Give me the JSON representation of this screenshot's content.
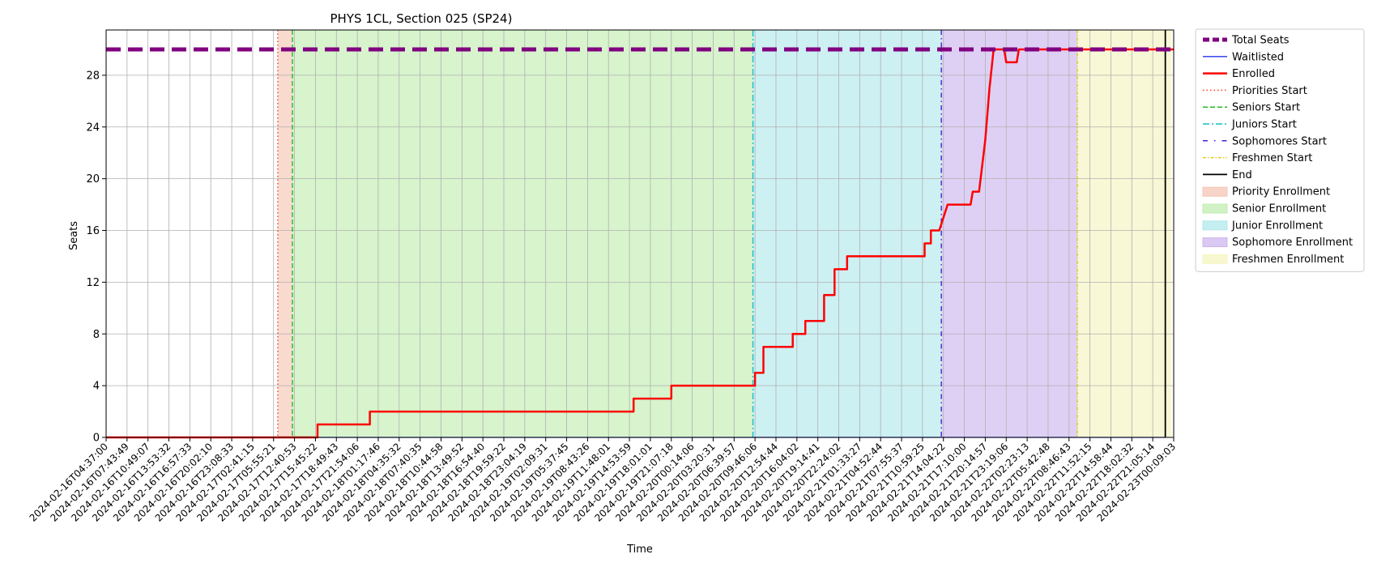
{
  "chart_data": {
    "type": "line",
    "title": "PHYS 1CL, Section 025 (SP24)",
    "xlabel": "Time",
    "ylabel": "Seats",
    "ylim": [
      0,
      31.5
    ],
    "yticks": [
      0,
      4,
      8,
      12,
      16,
      20,
      24,
      28
    ],
    "grid": true,
    "legend_position": "outside-right",
    "x_ticks": [
      "2024-02-16T04:37:00",
      "2024-02-16T07:43:49",
      "2024-02-16T10:49:07",
      "2024-02-16T13:53:32",
      "2024-02-16T16:57:33",
      "2024-02-16T20:02:10",
      "2024-02-16T23:08:33",
      "2024-02-17T02:41:15",
      "2024-02-17T05:55:21",
      "2024-02-17T12:40:53",
      "2024-02-17T15:45:22",
      "2024-02-17T18:49:43",
      "2024-02-17T21:54:06",
      "2024-02-18T01:17:46",
      "2024-02-18T04:35:32",
      "2024-02-18T07:40:35",
      "2024-02-18T10:44:58",
      "2024-02-18T13:49:52",
      "2024-02-18T16:54:40",
      "2024-02-18T19:59:22",
      "2024-02-18T23:04:19",
      "2024-02-19T02:09:31",
      "2024-02-19T05:37:45",
      "2024-02-19T08:43:26",
      "2024-02-19T11:48:01",
      "2024-02-19T14:53:59",
      "2024-02-19T18:01:01",
      "2024-02-19T21:07:18",
      "2024-02-20T00:14:06",
      "2024-02-20T03:20:31",
      "2024-02-20T06:39:57",
      "2024-02-20T09:46:06",
      "2024-02-20T12:54:44",
      "2024-02-20T16:04:02",
      "2024-02-20T19:14:41",
      "2024-02-20T22:24:02",
      "2024-02-21T01:33:27",
      "2024-02-21T04:52:44",
      "2024-02-21T07:55:37",
      "2024-02-21T10:59:25",
      "2024-02-21T14:04:22",
      "2024-02-21T17:10:00",
      "2024-02-21T20:14:57",
      "2024-02-21T23:19:06",
      "2024-02-22T02:23:13",
      "2024-02-22T05:42:48",
      "2024-02-22T08:46:43",
      "2024-02-22T11:52:15",
      "2024-02-22T14:58:44",
      "2024-02-22T18:02:32",
      "2024-02-22T21:05:14",
      "2024-02-23T00:09:03"
    ],
    "phases": [
      {
        "name": "Priority Enrollment",
        "start_index": 8.2,
        "end_index": 8.9,
        "color": "#f5c6b5"
      },
      {
        "name": "Senior Enrollment",
        "start_index": 8.9,
        "end_index": 30.9,
        "color": "#c2eeb2"
      },
      {
        "name": "Junior Enrollment",
        "start_index": 30.9,
        "end_index": 39.9,
        "color": "#b2e8ec"
      },
      {
        "name": "Sophomore Enrollment",
        "start_index": 39.9,
        "end_index": 46.4,
        "color": "#cdb7ee"
      },
      {
        "name": "Freshmen Enrollment",
        "start_index": 46.4,
        "end_index": 50.9,
        "color": "#f5f5c0"
      }
    ],
    "markers": [
      {
        "name": "Priorities Start",
        "index": 8.2,
        "color": "#ff3b1f",
        "dash": "1.5,3"
      },
      {
        "name": "Seniors Start",
        "index": 8.9,
        "color": "#22bb22",
        "dash": "6,3"
      },
      {
        "name": "Juniors Start",
        "index": 30.9,
        "color": "#13bdc6",
        "dash": "8,3,2,3"
      },
      {
        "name": "Sophomores Start",
        "index": 39.9,
        "color": "#4b1fd6",
        "dash": "6,4,1.5,4"
      },
      {
        "name": "Freshmen Start",
        "index": 46.4,
        "color": "#e1cc1e",
        "dash": "4,2,1.5,2"
      },
      {
        "name": "End",
        "index": 50.6,
        "color": "#000000",
        "dash": ""
      }
    ],
    "series": [
      {
        "name": "Total Seats",
        "color": "#800080",
        "style": "dashed-thick",
        "points": [
          [
            0,
            30
          ],
          [
            51,
            30
          ]
        ]
      },
      {
        "name": "Waitlisted",
        "color": "#2233ee",
        "style": "solid-thin",
        "points": [
          [
            0,
            0
          ],
          [
            50.6,
            0
          ]
        ]
      },
      {
        "name": "Enrolled",
        "color": "#ff0000",
        "style": "solid",
        "points": [
          [
            0,
            0
          ],
          [
            10.1,
            0
          ],
          [
            10.1,
            1
          ],
          [
            12.6,
            1
          ],
          [
            12.6,
            2
          ],
          [
            25.2,
            2
          ],
          [
            25.2,
            3
          ],
          [
            27.0,
            3
          ],
          [
            27.0,
            4
          ],
          [
            31.0,
            4
          ],
          [
            31.0,
            5
          ],
          [
            31.4,
            5
          ],
          [
            31.4,
            7
          ],
          [
            32.8,
            7
          ],
          [
            32.8,
            8
          ],
          [
            33.4,
            8
          ],
          [
            33.4,
            9
          ],
          [
            34.3,
            9
          ],
          [
            34.3,
            11
          ],
          [
            34.8,
            11
          ],
          [
            34.8,
            13
          ],
          [
            35.4,
            13
          ],
          [
            35.4,
            14
          ],
          [
            39.1,
            14
          ],
          [
            39.1,
            15
          ],
          [
            39.4,
            15
          ],
          [
            39.4,
            16
          ],
          [
            39.8,
            16
          ],
          [
            40.2,
            18
          ],
          [
            41.3,
            18
          ],
          [
            41.4,
            19
          ],
          [
            41.7,
            19
          ],
          [
            42.0,
            23
          ],
          [
            42.1,
            25
          ],
          [
            42.2,
            27
          ],
          [
            42.4,
            30
          ],
          [
            42.9,
            30
          ],
          [
            43.0,
            29
          ],
          [
            43.5,
            29
          ],
          [
            43.6,
            30
          ],
          [
            51,
            30
          ]
        ]
      }
    ],
    "legend": [
      {
        "label": "Total Seats",
        "kind": "line",
        "color": "#800080",
        "dash": "8,4",
        "width": 5
      },
      {
        "label": "Waitlisted",
        "kind": "line",
        "color": "#2233ee",
        "dash": "",
        "width": 1.3
      },
      {
        "label": "Enrolled",
        "kind": "line",
        "color": "#ff0000",
        "dash": "",
        "width": 2.5
      },
      {
        "label": "Priorities Start",
        "kind": "line",
        "color": "#ff3b1f",
        "dash": "1.5,3",
        "width": 1.5
      },
      {
        "label": "Seniors Start",
        "kind": "line",
        "color": "#22bb22",
        "dash": "6,3",
        "width": 1.5
      },
      {
        "label": "Juniors Start",
        "kind": "line",
        "color": "#13bdc6",
        "dash": "8,3,2,3",
        "width": 1.5
      },
      {
        "label": "Sophomores Start",
        "kind": "line",
        "color": "#4b1fd6",
        "dash": "6,8,1.5,8",
        "width": 1.5
      },
      {
        "label": "Freshmen Start",
        "kind": "line",
        "color": "#e1cc1e",
        "dash": "4,2,1.5,2",
        "width": 1.5
      },
      {
        "label": "End",
        "kind": "line",
        "color": "#000000",
        "dash": "",
        "width": 1.8
      },
      {
        "label": "Priority Enrollment",
        "kind": "patch",
        "color": "#f5c6b5"
      },
      {
        "label": "Senior Enrollment",
        "kind": "patch",
        "color": "#c2eeb2"
      },
      {
        "label": "Junior Enrollment",
        "kind": "patch",
        "color": "#b2e8ec"
      },
      {
        "label": "Sophomore Enrollment",
        "kind": "patch",
        "color": "#cdb7ee"
      },
      {
        "label": "Freshmen Enrollment",
        "kind": "patch",
        "color": "#f5f5c0"
      }
    ]
  }
}
